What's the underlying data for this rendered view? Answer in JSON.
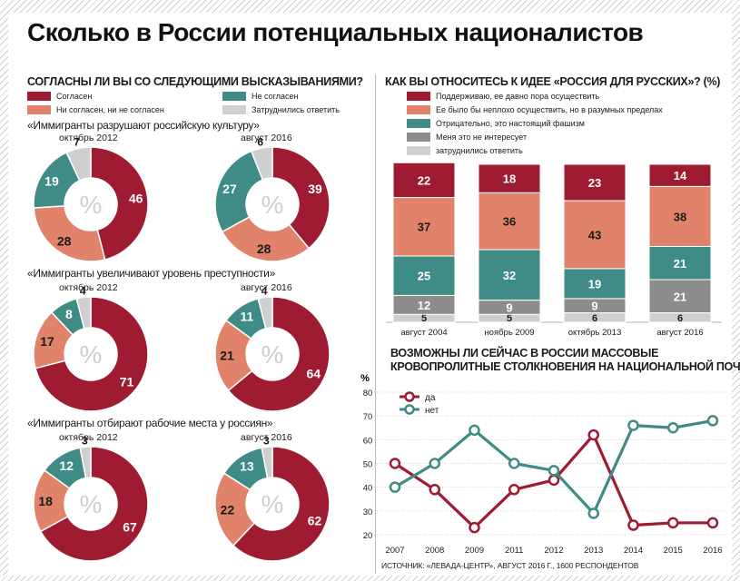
{
  "title": "Сколько в России потенциальных националистов",
  "colors": {
    "agree": "#9e1b32",
    "partly": "#e0836a",
    "disagree": "#3e8c85",
    "not_interested": "#8c8c8c",
    "undecided": "#cfcfcf"
  },
  "left": {
    "heading": "СОГЛАСНЫ ЛИ ВЫ СО СЛЕДУЮЩИМИ ВЫСКАЗЫВАНИЯМИ?",
    "legend": [
      {
        "label": "Согласен",
        "color": "#9e1b32"
      },
      {
        "label": "Ни согласен, ни не согласен",
        "color": "#e0836a"
      },
      {
        "label": "Не согласен",
        "color": "#3e8c85"
      },
      {
        "label": "Затруднились ответить",
        "color": "#cfcfcf"
      }
    ],
    "center_symbol": "%"
  },
  "right": {
    "heading": "КАК ВЫ ОТНОСИТЕСЬ К ИДЕЕ «РОССИЯ ДЛЯ РУССКИХ»? (%)",
    "legend": [
      {
        "label": "Поддерживаю, ее давно пора осуществить",
        "color": "#9e1b32"
      },
      {
        "label": "Ее было бы неплохо осуществить, но в разумных пределах",
        "color": "#e0836a"
      },
      {
        "label": "Отрицательно, это настоящий фашизм",
        "color": "#3e8c85"
      },
      {
        "label": "Меня это не интересует",
        "color": "#8c8c8c"
      },
      {
        "label": "затруднились ответить",
        "color": "#cfcfcf"
      }
    ]
  },
  "line": {
    "heading1": "ВОЗМОЖНЫ ЛИ СЕЙЧАС В РОССИИ МАССОВЫЕ",
    "heading2": "КРОВОПРОЛИТНЫЕ СТОЛКНОВЕНИЯ НА НАЦИОНАЛЬНОЙ ПОЧВЕ?",
    "unit": "%"
  },
  "source": "ИСТОЧНИК: «ЛЕВАДА-ЦЕНТР», АВГУСТ 2016 Г., 1600 РЕСПОНДЕНТОВ",
  "chart_data": [
    {
      "type": "pie",
      "title": "«Иммигранты разрушают российскую культуру»",
      "groups": [
        {
          "period": "октябрь 2012",
          "values": [
            46,
            28,
            19,
            7
          ]
        },
        {
          "period": "август 2016",
          "values": [
            39,
            28,
            27,
            6
          ]
        }
      ],
      "categories": [
        "Согласен",
        "Ни согласен, ни не согласен",
        "Не согласен",
        "Затруднились ответить"
      ]
    },
    {
      "type": "pie",
      "title": "«Иммигранты увеличивают уровень преступности»",
      "groups": [
        {
          "period": "октябрь 2012",
          "values": [
            71,
            17,
            8,
            4
          ]
        },
        {
          "period": "август 2016",
          "values": [
            64,
            21,
            11,
            4
          ]
        }
      ],
      "categories": [
        "Согласен",
        "Ни согласен, ни не согласен",
        "Не согласен",
        "Затруднились ответить"
      ]
    },
    {
      "type": "pie",
      "title": "«Иммигранты отбирают рабочие места у россиян»",
      "groups": [
        {
          "period": "октябрь 2012",
          "values": [
            67,
            18,
            12,
            3
          ]
        },
        {
          "period": "август 2016",
          "values": [
            62,
            22,
            13,
            3
          ]
        }
      ],
      "categories": [
        "Согласен",
        "Ни согласен, ни не согласен",
        "Не согласен",
        "Затруднились ответить"
      ]
    },
    {
      "type": "bar",
      "stacked": true,
      "categories": [
        "август 2004",
        "ноябрь 2009",
        "октябрь 2013",
        "август 2016"
      ],
      "series": [
        {
          "name": "Поддерживаю, ее давно пора осуществить",
          "values": [
            22,
            18,
            23,
            14
          ]
        },
        {
          "name": "Ее было бы неплохо осуществить, но в разумных пределах",
          "values": [
            37,
            36,
            43,
            38
          ]
        },
        {
          "name": "Отрицательно, это настоящий фашизм",
          "values": [
            25,
            32,
            19,
            21
          ]
        },
        {
          "name": "Меня это не интересует",
          "values": [
            12,
            9,
            9,
            21
          ]
        },
        {
          "name": "затруднились ответить",
          "values": [
            5,
            5,
            6,
            6
          ]
        }
      ]
    },
    {
      "type": "line",
      "x": [
        "2007",
        "2008",
        "2009",
        "2011",
        "2012",
        "2013",
        "2014",
        "2015",
        "2016"
      ],
      "ylim": [
        20,
        80
      ],
      "yticks": [
        20,
        30,
        40,
        50,
        60,
        70,
        80
      ],
      "series": [
        {
          "name": "да",
          "color": "#9e1b32",
          "values": [
            50,
            39,
            23,
            39,
            43,
            62,
            24,
            25,
            25
          ]
        },
        {
          "name": "нет",
          "color": "#3e8c85",
          "values": [
            40,
            50,
            64,
            50,
            47,
            29,
            66,
            65,
            68
          ]
        }
      ]
    }
  ]
}
